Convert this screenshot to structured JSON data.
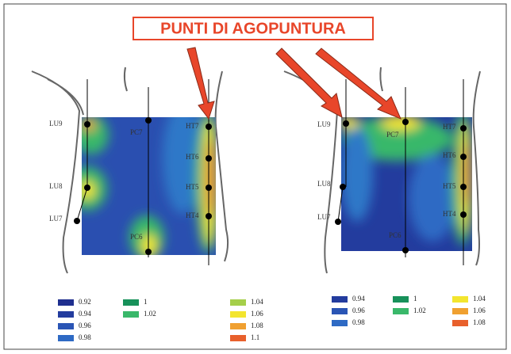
{
  "banner": "PUNTI DI AGOPUNTURA",
  "panels": [
    {
      "points": [
        {
          "label": "LU9"
        },
        {
          "label": "LU8"
        },
        {
          "label": "LU7"
        },
        {
          "label": "PC7"
        },
        {
          "label": "PC6"
        },
        {
          "label": "HT7"
        },
        {
          "label": "HT6"
        },
        {
          "label": "HT5"
        },
        {
          "label": "HT4"
        }
      ],
      "legend": [
        [
          {
            "label": "0.92",
            "color": "#1f2f8f"
          },
          {
            "label": "0.94",
            "color": "#233c9e"
          },
          {
            "label": "0.96",
            "color": "#2a55b5"
          },
          {
            "label": "0.98",
            "color": "#2e6ac4"
          }
        ],
        [
          {
            "label": "1",
            "color": "#17915a"
          },
          {
            "label": "1.02",
            "color": "#39b86a"
          }
        ],
        [
          {
            "label": "1.04",
            "color": "#a5cf4a"
          },
          {
            "label": "1.06",
            "color": "#f3e52e"
          },
          {
            "label": "1.08",
            "color": "#f0a030"
          },
          {
            "label": "1.1",
            "color": "#e8602c"
          }
        ]
      ]
    },
    {
      "points": [
        {
          "label": "LU9"
        },
        {
          "label": "LU8"
        },
        {
          "label": "LU7"
        },
        {
          "label": "PC7"
        },
        {
          "label": "PC6"
        },
        {
          "label": "HT7"
        },
        {
          "label": "HT6"
        },
        {
          "label": "HT5"
        },
        {
          "label": "HT4"
        }
      ],
      "legend": [
        [
          {
            "label": "0.94",
            "color": "#233c9e"
          },
          {
            "label": "0.96",
            "color": "#2a55b5"
          },
          {
            "label": "0.98",
            "color": "#2e6ac4"
          }
        ],
        [
          {
            "label": "1",
            "color": "#17915a"
          },
          {
            "label": "1.02",
            "color": "#39b86a"
          }
        ],
        [
          {
            "label": "1.04",
            "color": "#f3e52e"
          },
          {
            "label": "1.06",
            "color": "#f0a030"
          },
          {
            "label": "1.08",
            "color": "#e8602c"
          }
        ]
      ]
    }
  ]
}
